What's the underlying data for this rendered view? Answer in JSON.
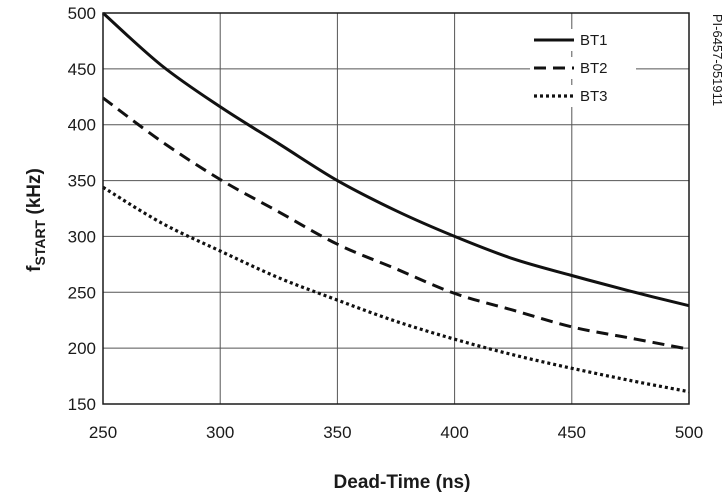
{
  "chart_data": {
    "type": "line",
    "xlabel": "Dead-Time (ns)",
    "ylabel_main": "f",
    "ylabel_sub": "START",
    "ylabel_unit": " (kHz)",
    "xlim": [
      250,
      500
    ],
    "ylim": [
      150,
      500
    ],
    "xticks": [
      250,
      300,
      350,
      400,
      450,
      500
    ],
    "yticks": [
      150,
      200,
      250,
      300,
      350,
      400,
      450,
      500
    ],
    "grid": true,
    "legend_position": "top-right",
    "figure_id": "PI-6457-051911",
    "series": [
      {
        "name": "BT1",
        "style": "solid",
        "x": [
          250,
          275,
          300,
          325,
          350,
          375,
          400,
          425,
          450,
          475,
          500
        ],
        "y": [
          500,
          453,
          416,
          383,
          350,
          323,
          300,
          280,
          265,
          251,
          238
        ]
      },
      {
        "name": "BT2",
        "style": "dashed",
        "x": [
          250,
          275,
          300,
          325,
          350,
          375,
          400,
          425,
          450,
          475,
          500
        ],
        "y": [
          424,
          385,
          351,
          322,
          293,
          271,
          249,
          234,
          219,
          209,
          199
        ]
      },
      {
        "name": "BT3",
        "style": "dotted",
        "x": [
          250,
          275,
          300,
          325,
          350,
          375,
          400,
          425,
          450,
          475,
          500
        ],
        "y": [
          344,
          312,
          287,
          263,
          243,
          224,
          208,
          194,
          182,
          171,
          161
        ]
      }
    ]
  }
}
